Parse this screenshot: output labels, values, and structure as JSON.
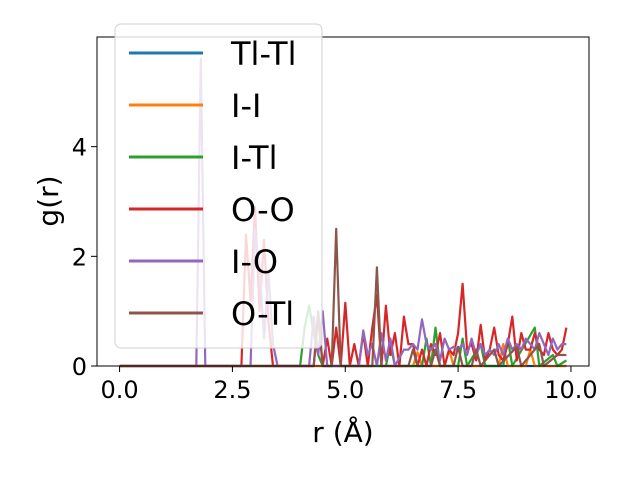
{
  "chart_data": {
    "type": "line",
    "xlabel": "r (Å)",
    "ylabel": "g(r)",
    "xlim": [
      -0.5,
      10.4
    ],
    "ylim": [
      0,
      6.0
    ],
    "x_ticks": [
      "0.0",
      "2.5",
      "5.0",
      "7.5",
      "10.0"
    ],
    "y_ticks": [
      "0",
      "2",
      "4"
    ],
    "grid": false,
    "legend": "upper-left",
    "series": [
      {
        "name": "Tl-Tl",
        "color": "#1f77b4",
        "points": [
          [
            0,
            0
          ],
          [
            9.9,
            0
          ]
        ]
      },
      {
        "name": "I-I",
        "color": "#ff7f0e",
        "points": [
          [
            0,
            0
          ],
          [
            6.5,
            0
          ],
          [
            6.6,
            0.25
          ],
          [
            6.7,
            0
          ],
          [
            7.2,
            0
          ],
          [
            7.3,
            0.3
          ],
          [
            7.4,
            0
          ],
          [
            8.4,
            0
          ],
          [
            8.5,
            0.4
          ],
          [
            8.6,
            0
          ],
          [
            9.0,
            0
          ],
          [
            9.1,
            0.3
          ],
          [
            9.2,
            0
          ],
          [
            9.9,
            0
          ]
        ]
      },
      {
        "name": "I-Tl",
        "color": "#2ca02c",
        "points": [
          [
            0,
            0
          ],
          [
            4.0,
            0
          ],
          [
            4.1,
            0.7
          ],
          [
            4.2,
            1.1
          ],
          [
            4.3,
            0.6
          ],
          [
            4.4,
            0.2
          ],
          [
            4.5,
            0
          ],
          [
            5.9,
            0
          ],
          [
            6.0,
            0.4
          ],
          [
            6.1,
            0
          ],
          [
            6.7,
            0
          ],
          [
            6.8,
            0.5
          ],
          [
            6.9,
            0
          ],
          [
            7.0,
            0.7
          ],
          [
            7.1,
            0
          ],
          [
            7.5,
            0
          ],
          [
            7.6,
            0.5
          ],
          [
            7.7,
            0
          ],
          [
            8.0,
            0.4
          ],
          [
            8.1,
            0
          ],
          [
            8.5,
            0
          ],
          [
            8.6,
            0.5
          ],
          [
            8.7,
            0
          ],
          [
            9.2,
            0.7
          ],
          [
            9.3,
            0
          ],
          [
            9.6,
            0.2
          ],
          [
            9.7,
            0
          ],
          [
            9.9,
            0.1
          ]
        ]
      },
      {
        "name": "O-O",
        "color": "#d62728",
        "points": [
          [
            0,
            0
          ],
          [
            2.7,
            0
          ],
          [
            2.8,
            2.4
          ],
          [
            2.9,
            1.2
          ],
          [
            3.0,
            2.9
          ],
          [
            3.1,
            1.0
          ],
          [
            3.2,
            2.3
          ],
          [
            3.3,
            0.8
          ],
          [
            3.4,
            0
          ],
          [
            4.3,
            0
          ],
          [
            4.4,
            0.9
          ],
          [
            4.5,
            0
          ],
          [
            4.6,
            0.5
          ],
          [
            4.7,
            0
          ],
          [
            4.8,
            0.7
          ],
          [
            4.9,
            0
          ],
          [
            5.0,
            1.15
          ],
          [
            5.1,
            0
          ],
          [
            5.2,
            0.4
          ],
          [
            5.3,
            0
          ],
          [
            5.4,
            0.6
          ],
          [
            5.5,
            0
          ],
          [
            5.6,
            0.7
          ],
          [
            5.7,
            1.3
          ],
          [
            5.8,
            0
          ],
          [
            5.9,
            1.1
          ],
          [
            6.0,
            0.2
          ],
          [
            6.1,
            0.6
          ],
          [
            6.2,
            0
          ],
          [
            6.3,
            0.9
          ],
          [
            6.4,
            0.4
          ],
          [
            6.5,
            0.4
          ],
          [
            6.6,
            0
          ],
          [
            6.7,
            0.3
          ],
          [
            6.8,
            0
          ],
          [
            6.9,
            0.4
          ],
          [
            7.0,
            0.2
          ],
          [
            7.1,
            0.6
          ],
          [
            7.2,
            0
          ],
          [
            7.3,
            0.3
          ],
          [
            7.4,
            0.2
          ],
          [
            7.5,
            0.6
          ],
          [
            7.6,
            1.5
          ],
          [
            7.7,
            0.3
          ],
          [
            7.8,
            0.4
          ],
          [
            7.9,
            0.1
          ],
          [
            8.0,
            0.75
          ],
          [
            8.1,
            0.1
          ],
          [
            8.2,
            0.3
          ],
          [
            8.3,
            0.7
          ],
          [
            8.4,
            0.2
          ],
          [
            8.5,
            0.1
          ],
          [
            8.6,
            0.4
          ],
          [
            8.7,
            0.9
          ],
          [
            8.8,
            0.1
          ],
          [
            8.9,
            0.6
          ],
          [
            9.0,
            0.3
          ],
          [
            9.1,
            0.3
          ],
          [
            9.2,
            0.6
          ],
          [
            9.3,
            0.3
          ],
          [
            9.4,
            0.2
          ],
          [
            9.5,
            0.6
          ],
          [
            9.6,
            0.3
          ],
          [
            9.7,
            0.2
          ],
          [
            9.8,
            0.3
          ],
          [
            9.9,
            0.7
          ]
        ]
      },
      {
        "name": "I-O",
        "color": "#9467bd",
        "points": [
          [
            0,
            0
          ],
          [
            1.7,
            0
          ],
          [
            1.8,
            5.6
          ],
          [
            1.9,
            0
          ],
          [
            2.9,
            0
          ],
          [
            3.0,
            2.5
          ],
          [
            3.1,
            1.8
          ],
          [
            3.2,
            0.5
          ],
          [
            3.3,
            1.7
          ],
          [
            3.4,
            0.4
          ],
          [
            3.5,
            0
          ],
          [
            4.2,
            0
          ],
          [
            4.3,
            0.9
          ],
          [
            4.4,
            0.2
          ],
          [
            4.5,
            1.0
          ],
          [
            4.6,
            0
          ],
          [
            5.3,
            0
          ],
          [
            5.4,
            0.65
          ],
          [
            5.5,
            0.2
          ],
          [
            5.6,
            0.4
          ],
          [
            5.7,
            0
          ],
          [
            5.8,
            0.6
          ],
          [
            5.9,
            0.1
          ],
          [
            6.0,
            0.5
          ],
          [
            6.1,
            0
          ],
          [
            6.3,
            0.3
          ],
          [
            6.4,
            0.3
          ],
          [
            6.5,
            0.4
          ],
          [
            6.6,
            0.3
          ],
          [
            6.7,
            0.85
          ],
          [
            6.8,
            0.4
          ],
          [
            6.9,
            0.3
          ],
          [
            7.0,
            0.4
          ],
          [
            7.1,
            0.1
          ],
          [
            7.2,
            0.5
          ],
          [
            7.3,
            0.3
          ],
          [
            7.4,
            0.35
          ],
          [
            7.5,
            0.3
          ],
          [
            7.6,
            0.4
          ],
          [
            7.7,
            0.2
          ],
          [
            7.8,
            0.5
          ],
          [
            7.9,
            0.2
          ],
          [
            8.0,
            0.4
          ],
          [
            8.1,
            0.2
          ],
          [
            8.2,
            0.3
          ],
          [
            8.3,
            0.2
          ],
          [
            8.4,
            0.4
          ],
          [
            8.5,
            0.2
          ],
          [
            8.6,
            0.5
          ],
          [
            8.7,
            0.3
          ],
          [
            8.8,
            0.4
          ],
          [
            8.9,
            0.3
          ],
          [
            9.0,
            0.5
          ],
          [
            9.1,
            0.4
          ],
          [
            9.2,
            0.3
          ],
          [
            9.3,
            0.6
          ],
          [
            9.4,
            0.4
          ],
          [
            9.5,
            0.2
          ],
          [
            9.6,
            0.5
          ],
          [
            9.7,
            0.3
          ],
          [
            9.8,
            0.4
          ],
          [
            9.9,
            0.4
          ]
        ]
      },
      {
        "name": "O-Tl",
        "color": "#8c564b",
        "points": [
          [
            0,
            0
          ],
          [
            4.3,
            0
          ],
          [
            4.4,
            1.0
          ],
          [
            4.5,
            0
          ],
          [
            4.7,
            0
          ],
          [
            4.8,
            2.5
          ],
          [
            4.9,
            0
          ],
          [
            5.6,
            0
          ],
          [
            5.7,
            1.8
          ],
          [
            5.8,
            0
          ],
          [
            6.4,
            0
          ],
          [
            6.5,
            0.3
          ],
          [
            6.6,
            0
          ],
          [
            6.9,
            0
          ],
          [
            7.0,
            0.3
          ],
          [
            7.1,
            0
          ],
          [
            7.4,
            0
          ],
          [
            7.5,
            0.35
          ],
          [
            7.6,
            0
          ],
          [
            7.8,
            0
          ],
          [
            7.9,
            0.3
          ],
          [
            8.0,
            0
          ],
          [
            8.3,
            0.3
          ],
          [
            8.4,
            0
          ],
          [
            8.8,
            0.35
          ],
          [
            8.9,
            0
          ],
          [
            9.3,
            0.4
          ],
          [
            9.4,
            0
          ],
          [
            9.7,
            0.2
          ],
          [
            9.8,
            0.2
          ],
          [
            9.9,
            0.2
          ]
        ]
      }
    ]
  }
}
